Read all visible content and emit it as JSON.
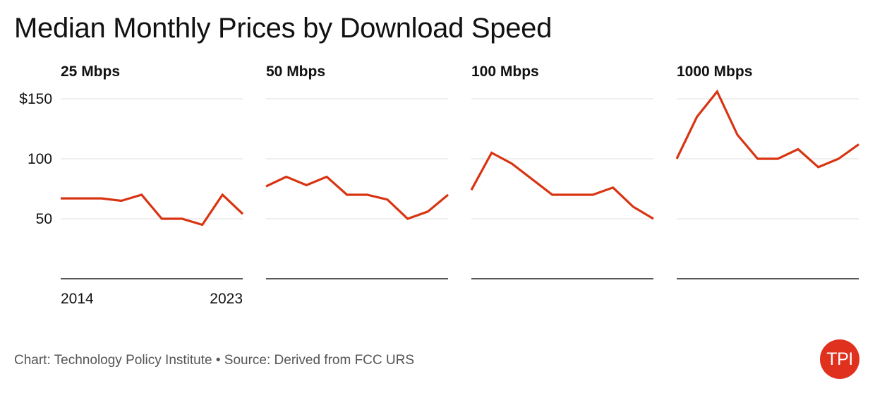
{
  "title": "Median Monthly Prices by Download Speed",
  "footer": "Chart: Technology Policy Institute • Source: Derived from FCC URS",
  "logo": {
    "text": "TPI",
    "color": "#e0301e"
  },
  "colors": {
    "line": "#d93412",
    "grid": "#dddddd",
    "axis": "#222222",
    "text": "#111111"
  },
  "chart_data": {
    "type": "line",
    "layout": "small-multiples",
    "x": [
      2014,
      2015,
      2016,
      2017,
      2018,
      2019,
      2020,
      2021,
      2022,
      2023
    ],
    "ylim": [
      0,
      150
    ],
    "yticks": [
      50,
      100,
      150
    ],
    "ytick_labels": [
      "50",
      "100",
      "$150"
    ],
    "xtick_labels": [
      "2014",
      "2023"
    ],
    "grid": true,
    "panels": [
      {
        "title": "25 Mbps",
        "values": [
          67,
          67,
          67,
          65,
          70,
          50,
          50,
          45,
          70,
          54
        ]
      },
      {
        "title": "50 Mbps",
        "values": [
          77,
          85,
          78,
          85,
          70,
          70,
          66,
          50,
          56,
          70
        ]
      },
      {
        "title": "100 Mbps",
        "values": [
          74,
          105,
          96,
          83,
          70,
          70,
          70,
          76,
          60,
          50
        ]
      },
      {
        "title": "1000 Mbps",
        "values": [
          100,
          135,
          156,
          120,
          100,
          100,
          108,
          93,
          100,
          112
        ]
      }
    ]
  }
}
